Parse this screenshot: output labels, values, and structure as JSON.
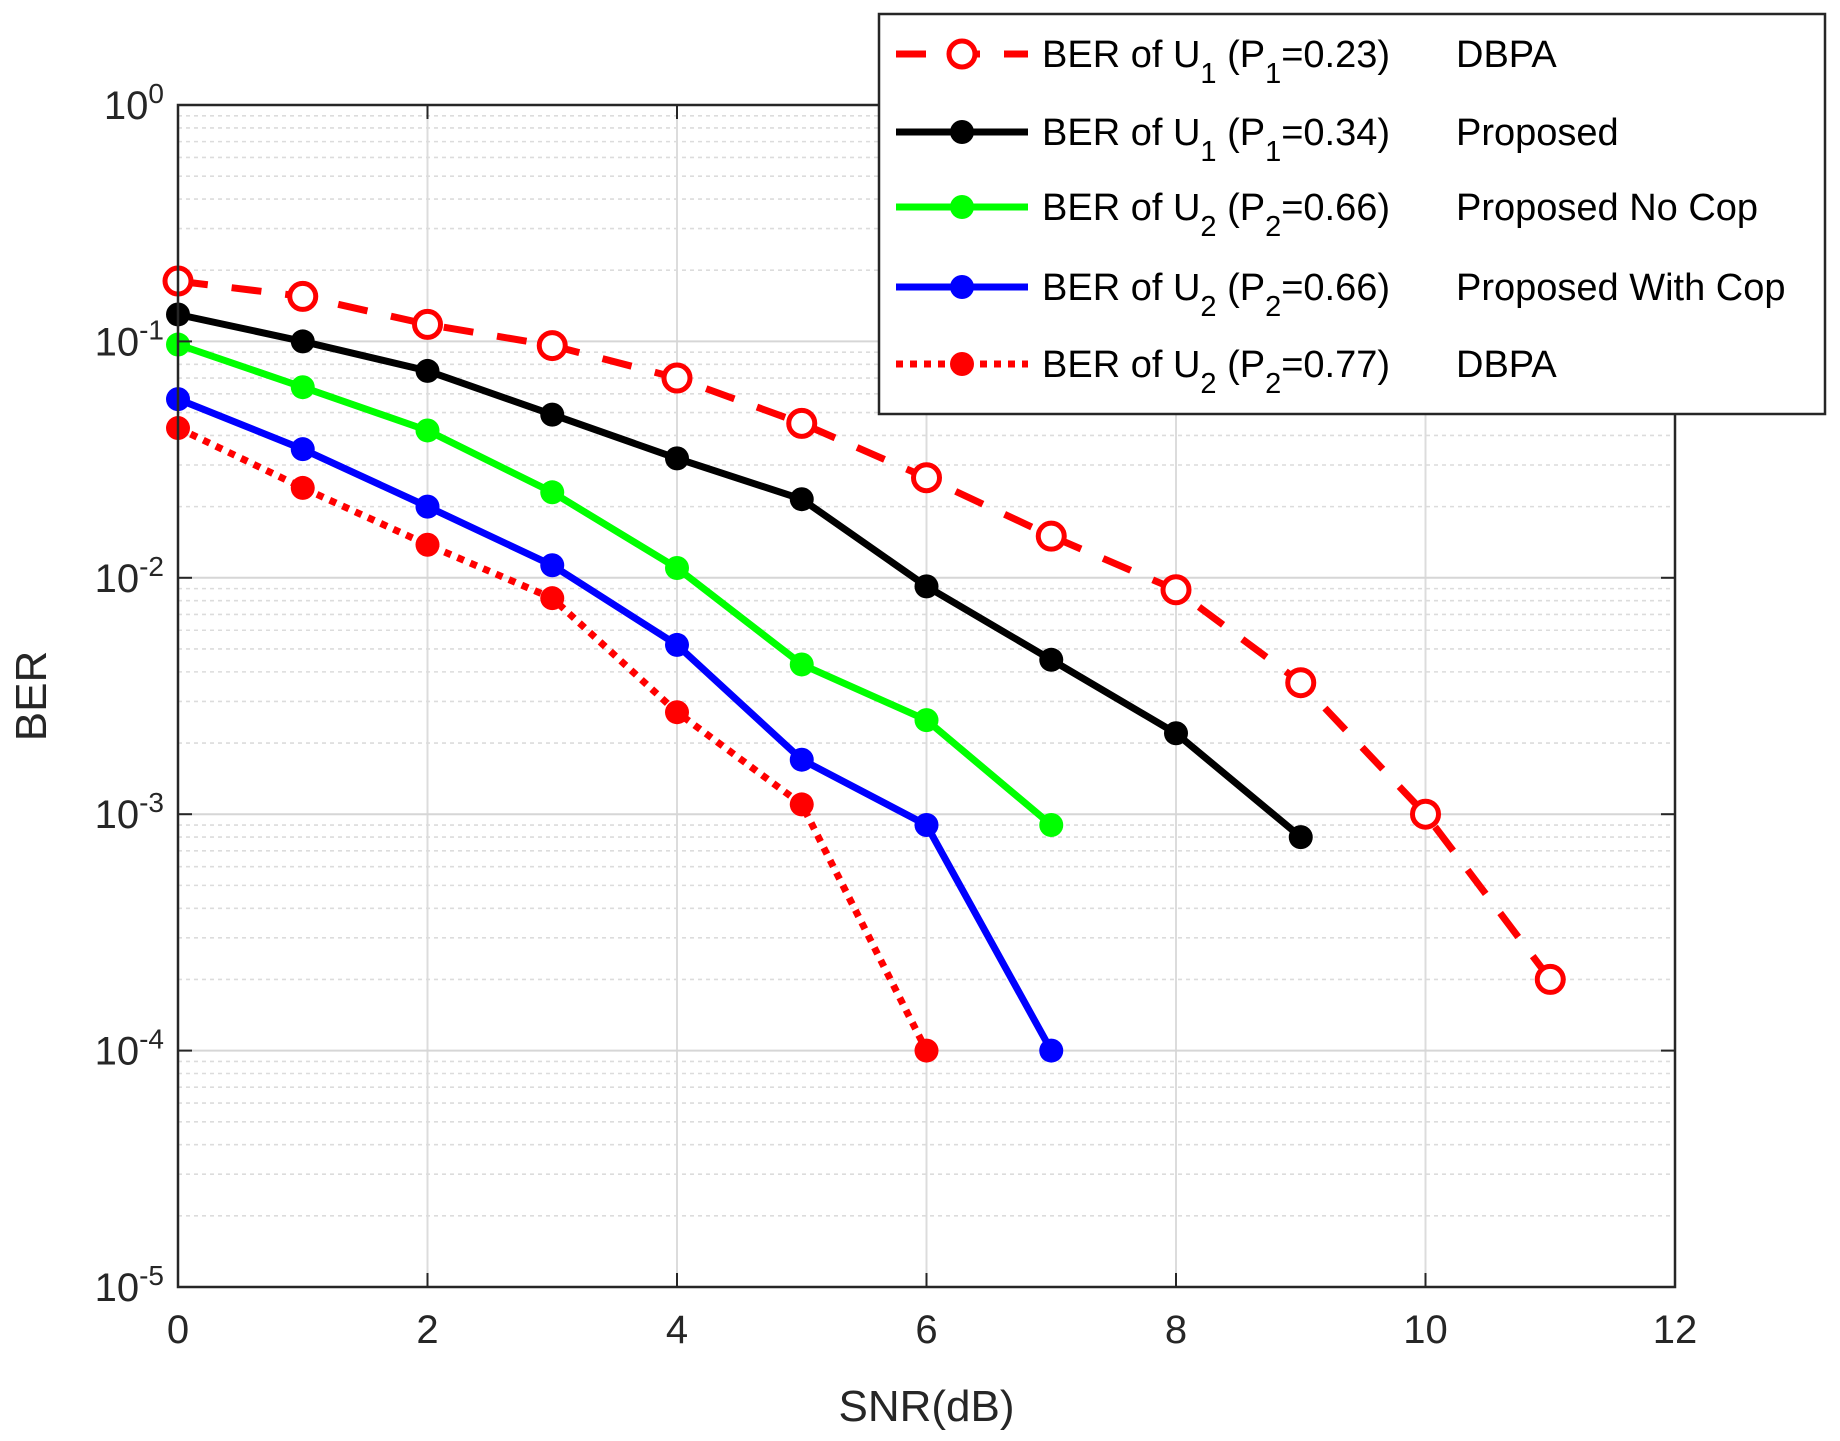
{
  "chart_data": {
    "type": "line",
    "title": "",
    "xlabel": "SNR(dB)",
    "ylabel": "BER",
    "xscale": "linear",
    "yscale": "log",
    "xlim": [
      0,
      12
    ],
    "ylim": [
      1e-05,
      1
    ],
    "xticks": [
      0,
      2,
      4,
      6,
      8,
      10,
      12
    ],
    "xtick_labels": [
      "0",
      "2",
      "4",
      "6",
      "8",
      "10",
      "12"
    ],
    "yticks": [
      {
        "value": 1,
        "base": "10",
        "exp": "0"
      },
      {
        "value": 0.1,
        "base": "10",
        "exp": "-1"
      },
      {
        "value": 0.01,
        "base": "10",
        "exp": "-2"
      },
      {
        "value": 0.001,
        "base": "10",
        "exp": "-3"
      },
      {
        "value": 0.0001,
        "base": "10",
        "exp": "-4"
      },
      {
        "value": 1e-05,
        "base": "10",
        "exp": "-5"
      }
    ],
    "grid": true,
    "legend_position": "top-right",
    "series": [
      {
        "name": "BER of U1 (P1=0.23) DBPA",
        "legend": {
          "a": "BER of U",
          "sub1": "1",
          "b": " (P",
          "sub2": "1",
          "c": "=0.23)",
          "d": "DBPA"
        },
        "color": "#ff0000",
        "line": "dashed",
        "marker": "open-circle",
        "x": [
          0,
          1,
          2,
          3,
          4,
          5,
          6,
          7,
          8,
          9,
          10,
          11
        ],
        "y": [
          0.18,
          0.155,
          0.118,
          0.096,
          0.07,
          0.045,
          0.0265,
          0.015,
          0.0089,
          0.0036,
          0.001,
          0.0002
        ]
      },
      {
        "name": "BER of U1 (P1=0.34) Proposed",
        "legend": {
          "a": "BER of U",
          "sub1": "1",
          "b": " (P",
          "sub2": "1",
          "c": "=0.34)",
          "d": "Proposed"
        },
        "color": "#000000",
        "line": "solid",
        "marker": "filled-circle",
        "x": [
          0,
          1,
          2,
          3,
          4,
          5,
          6,
          7,
          8,
          9
        ],
        "y": [
          0.13,
          0.1,
          0.075,
          0.049,
          0.032,
          0.0215,
          0.0092,
          0.0045,
          0.0022,
          0.0008
        ]
      },
      {
        "name": "BER of U2 (P2=0.66) Proposed No Cop",
        "legend": {
          "a": "BER of U",
          "sub1": "2",
          "b": " (P",
          "sub2": "2",
          "c": "=0.66)",
          "d": "Proposed No Cop"
        },
        "color": "#00ff00",
        "line": "solid",
        "marker": "filled-circle",
        "x": [
          0,
          1,
          2,
          3,
          4,
          5,
          6,
          7
        ],
        "y": [
          0.097,
          0.064,
          0.042,
          0.023,
          0.011,
          0.0043,
          0.0025,
          0.0009
        ]
      },
      {
        "name": "BER of U2 (P2=0.66) Proposed With Cop",
        "legend": {
          "a": "BER of U",
          "sub1": "2",
          "b": " (P",
          "sub2": "2",
          "c": "=0.66)",
          "d": "Proposed With Cop"
        },
        "color": "#0000ff",
        "line": "solid",
        "marker": "filled-circle",
        "x": [
          0,
          1,
          2,
          3,
          4,
          5,
          6,
          7
        ],
        "y": [
          0.057,
          0.035,
          0.02,
          0.0113,
          0.0052,
          0.0017,
          0.0009,
          0.0001
        ]
      },
      {
        "name": "BER of U2 (P2=0.77) DBPA",
        "legend": {
          "a": "BER of U",
          "sub1": "2",
          "b": " (P",
          "sub2": "2",
          "c": "=0.77)",
          "d": "DBPA"
        },
        "color": "#ff0000",
        "line": "dotted",
        "marker": "filled-circle",
        "x": [
          0,
          1,
          2,
          3,
          4,
          5,
          6
        ],
        "y": [
          0.043,
          0.024,
          0.0138,
          0.0082,
          0.0027,
          0.0011,
          0.0001
        ]
      }
    ]
  }
}
